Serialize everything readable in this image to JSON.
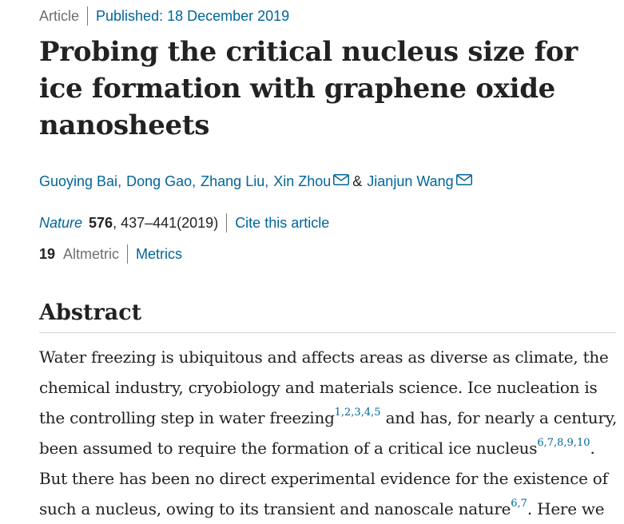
{
  "article_meta": {
    "type": "Article",
    "published": "Published: 18 December 2019"
  },
  "title": "Probing the critical nucleus size for ice formation with graphene oxide nanosheets",
  "authors": [
    {
      "name": "Guoying Bai",
      "email_icon": false
    },
    {
      "name": "Dong Gao",
      "email_icon": false
    },
    {
      "name": "Zhang Liu",
      "email_icon": false
    },
    {
      "name": "Xin Zhou",
      "email_icon": true
    },
    {
      "name": "Jianjun Wang",
      "email_icon": true
    }
  ],
  "authors_separator": "&",
  "citation": {
    "journal": "Nature",
    "volume": "576",
    "pages_year": ", 437–441(2019)",
    "cite_link": "Cite this article"
  },
  "metrics": {
    "altmetric_count": "19",
    "altmetric_label": "Altmetric",
    "metrics_link": "Metrics"
  },
  "abstract": {
    "heading": "Abstract",
    "segments": [
      {
        "text": "Water freezing is ubiquitous and affects areas as diverse as climate, the chemical industry, cryobiology and materials science. Ice nucleation is the controlling step in water freezing"
      },
      {
        "ref": "1,2,3,4,5"
      },
      {
        "text": " and has, for nearly a century, been assumed to require the formation of a critical ice nucleus"
      },
      {
        "ref": "6,7,8,9,10"
      },
      {
        "text": ". But there has been no direct experimental evidence for the existence of such a nucleus, owing to its transient and nanoscale nature"
      },
      {
        "ref": "6,7"
      },
      {
        "text": ". Here we"
      }
    ]
  },
  "colors": {
    "link": "#006699",
    "text": "#222222",
    "muted": "#6f6f6f"
  },
  "icons": {
    "email": "envelope-icon"
  }
}
